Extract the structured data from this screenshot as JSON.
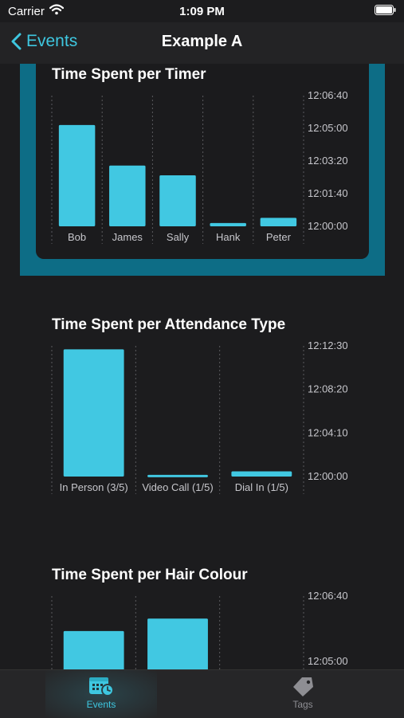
{
  "status_bar": {
    "carrier": "Carrier",
    "time": "1:09 PM"
  },
  "nav": {
    "back_label": "Events",
    "title": "Example A"
  },
  "tabs": [
    {
      "label": "Events",
      "icon": "calendar-clock-icon",
      "active": true
    },
    {
      "label": "Tags",
      "icon": "tag-icon",
      "active": false
    }
  ],
  "colors": {
    "accent": "#3ec7e0",
    "bar": "#41c8e2",
    "highlight": "#0d6d86"
  },
  "chart_data": [
    {
      "type": "bar",
      "title": "Time Spent per Timer",
      "categories": [
        "Bob",
        "James",
        "Sally",
        "Hank",
        "Peter"
      ],
      "values": [
        310,
        186,
        156,
        10,
        26
      ],
      "y_ticks": [
        "12:00:00",
        "12:01:40",
        "12:03:20",
        "12:05:00",
        "12:06:40"
      ],
      "ylim": [
        0,
        400
      ],
      "y_axis_position": "right",
      "grid": "dashed-vertical"
    },
    {
      "type": "bar",
      "title": "Time Spent per Attendance Type",
      "categories": [
        "In Person (3/5)",
        "Video Call (1/5)",
        "Dial In (1/5)"
      ],
      "values": [
        730,
        10,
        30
      ],
      "y_ticks": [
        "12:00:00",
        "12:04:10",
        "12:08:20",
        "12:12:30"
      ],
      "ylim": [
        0,
        750
      ],
      "y_axis_position": "right",
      "grid": "dashed-vertical"
    },
    {
      "type": "bar",
      "title": "Time Spent per Hair Colour",
      "categories": [
        "",
        ""
      ],
      "values": [
        293,
        331
      ],
      "y_ticks": [
        "12:03:20",
        "12:05:00",
        "12:06:40"
      ],
      "ylim": [
        0,
        400
      ],
      "y_axis_position": "right",
      "grid": "dashed-vertical"
    }
  ]
}
